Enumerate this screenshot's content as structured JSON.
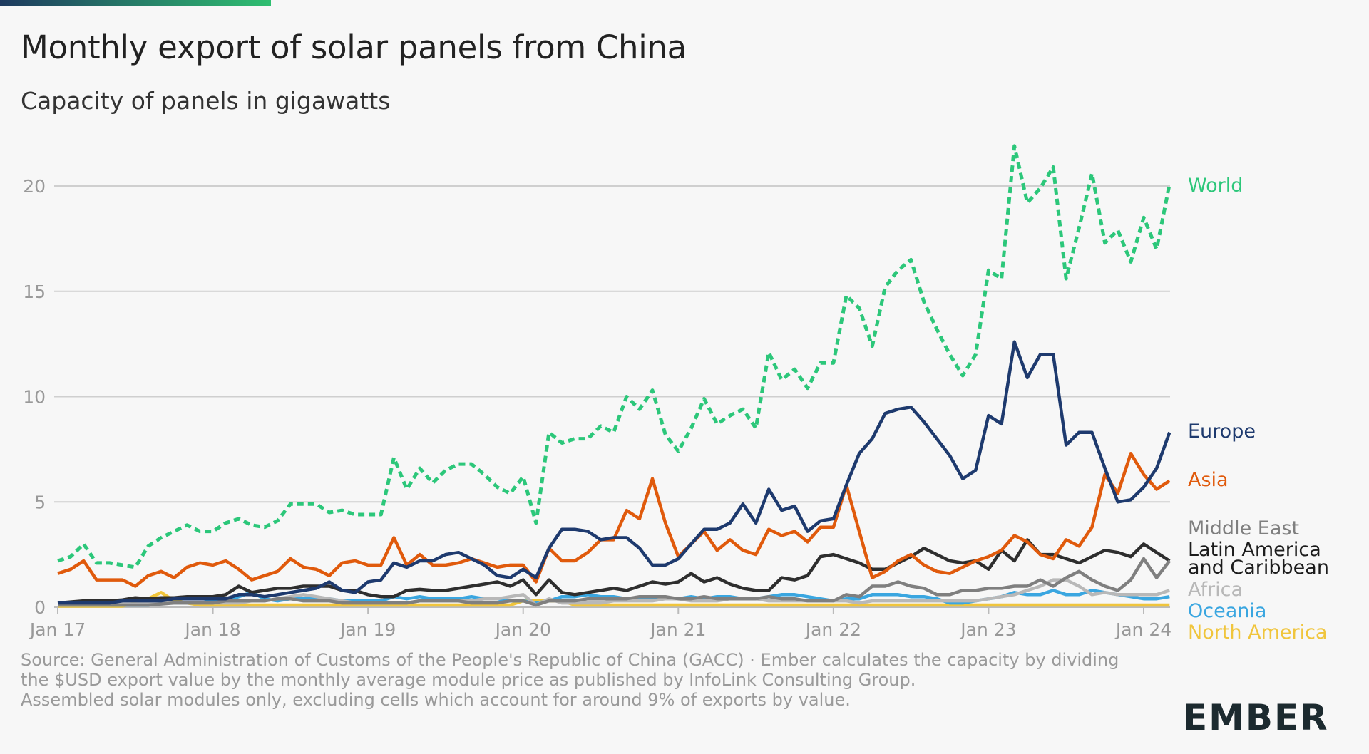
{
  "title": "Monthly export of solar panels from China",
  "subtitle": "Capacity of panels in gigawatts",
  "source_lines": [
    "Source: General Administration of Customs of the People's Republic of China (GACC) · Ember calculates the capacity by dividing the $USD export value by the monthly average module price as published by InfoLink Consulting Group.",
    "Assembled solar modules only, excluding cells which account for around 9% of exports by value."
  ],
  "logo": "EMBER",
  "chart_data": {
    "type": "line",
    "title": "Monthly export of solar panels from China",
    "ylabel": "Capacity of panels in gigawatts",
    "x_start": "Jan 2017",
    "x_end": "Mar 2024",
    "x_frequency": "monthly",
    "xticks": [
      "Jan 17",
      "Jan 18",
      "Jan 19",
      "Jan 20",
      "Jan 21",
      "Jan 22",
      "Jan 23",
      "Jan 24"
    ],
    "yticks": [
      0,
      5,
      10,
      15,
      20
    ],
    "ylim": [
      0,
      22
    ],
    "grid": true,
    "legend": "right (direct labels)",
    "series": [
      {
        "name": "World",
        "color": "#2cc77a",
        "dashed": true,
        "values": [
          2.2,
          2.4,
          3.0,
          2.1,
          2.1,
          2.0,
          1.9,
          2.9,
          3.3,
          3.6,
          3.9,
          3.6,
          3.6,
          4.0,
          4.2,
          3.9,
          3.8,
          4.1,
          4.9,
          4.9,
          4.9,
          4.5,
          4.6,
          4.4,
          4.4,
          4.4,
          7.1,
          5.6,
          6.6,
          5.9,
          6.5,
          6.8,
          6.8,
          6.3,
          5.7,
          5.4,
          6.2,
          4.0,
          8.3,
          7.8,
          8.0,
          8.0,
          8.6,
          8.3,
          10.0,
          9.4,
          10.3,
          8.2,
          7.4,
          8.5,
          9.9,
          8.7,
          9.1,
          9.4,
          8.5,
          12.1,
          10.8,
          11.3,
          10.4,
          11.6,
          11.6,
          14.8,
          14.2,
          12.4,
          15.2,
          16.0,
          16.5,
          14.5,
          13.2,
          12.0,
          11.0,
          12.0,
          16.0,
          15.6,
          21.9,
          19.2,
          19.9,
          20.9,
          15.6,
          18.0,
          20.6,
          17.3,
          17.9,
          16.4,
          18.5,
          17.0,
          20.1
        ]
      },
      {
        "name": "Europe",
        "color": "#1e3a6e",
        "values": [
          0.2,
          0.2,
          0.2,
          0.2,
          0.2,
          0.3,
          0.3,
          0.3,
          0.3,
          0.4,
          0.4,
          0.4,
          0.4,
          0.4,
          0.6,
          0.6,
          0.5,
          0.6,
          0.7,
          0.8,
          0.9,
          1.2,
          0.8,
          0.7,
          1.2,
          1.3,
          2.1,
          1.9,
          2.2,
          2.2,
          2.5,
          2.6,
          2.3,
          2.0,
          1.5,
          1.4,
          1.8,
          1.4,
          2.8,
          3.7,
          3.7,
          3.6,
          3.2,
          3.3,
          3.3,
          2.8,
          2.0,
          2.0,
          2.3,
          3.0,
          3.7,
          3.7,
          4.0,
          4.9,
          4.0,
          5.6,
          4.6,
          4.8,
          3.6,
          4.1,
          4.2,
          5.8,
          7.3,
          8.0,
          9.2,
          9.4,
          9.5,
          8.8,
          8.0,
          7.2,
          6.1,
          6.5,
          9.1,
          8.7,
          12.6,
          10.9,
          12.0,
          12.0,
          7.7,
          8.3,
          8.3,
          6.6,
          5.0,
          5.1,
          5.7,
          6.6,
          8.3
        ]
      },
      {
        "name": "Asia",
        "color": "#e05a0c",
        "values": [
          1.6,
          1.8,
          2.2,
          1.3,
          1.3,
          1.3,
          1.0,
          1.5,
          1.7,
          1.4,
          1.9,
          2.1,
          2.0,
          2.2,
          1.8,
          1.3,
          1.5,
          1.7,
          2.3,
          1.9,
          1.8,
          1.5,
          2.1,
          2.2,
          2.0,
          2.0,
          3.3,
          2.0,
          2.5,
          2.0,
          2.0,
          2.1,
          2.3,
          2.1,
          1.9,
          2.0,
          2.0,
          1.2,
          2.8,
          2.2,
          2.2,
          2.6,
          3.2,
          3.2,
          4.6,
          4.2,
          6.1,
          4.0,
          2.4,
          3.0,
          3.6,
          2.7,
          3.2,
          2.7,
          2.5,
          3.7,
          3.4,
          3.6,
          3.1,
          3.8,
          3.8,
          5.8,
          3.6,
          1.4,
          1.7,
          2.2,
          2.5,
          2.0,
          1.7,
          1.6,
          1.9,
          2.2,
          2.4,
          2.7,
          3.4,
          3.1,
          2.5,
          2.3,
          3.2,
          2.9,
          3.8,
          6.3,
          5.4,
          7.3,
          6.3,
          5.6,
          6.0
        ]
      },
      {
        "name": "Middle East",
        "color": "#7f7f7f",
        "values": [
          0.1,
          0.1,
          0.1,
          0.1,
          0.1,
          0.1,
          0.1,
          0.1,
          0.15,
          0.2,
          0.2,
          0.2,
          0.2,
          0.3,
          0.3,
          0.3,
          0.3,
          0.4,
          0.4,
          0.3,
          0.3,
          0.3,
          0.2,
          0.2,
          0.2,
          0.2,
          0.2,
          0.2,
          0.3,
          0.3,
          0.3,
          0.3,
          0.2,
          0.2,
          0.2,
          0.3,
          0.3,
          0.1,
          0.3,
          0.3,
          0.3,
          0.4,
          0.4,
          0.4,
          0.4,
          0.5,
          0.5,
          0.5,
          0.4,
          0.4,
          0.5,
          0.4,
          0.4,
          0.4,
          0.4,
          0.5,
          0.4,
          0.4,
          0.3,
          0.3,
          0.3,
          0.6,
          0.5,
          1.0,
          1.0,
          1.2,
          1.0,
          0.9,
          0.6,
          0.6,
          0.8,
          0.8,
          0.9,
          0.9,
          1.0,
          1.0,
          1.3,
          1.0,
          1.4,
          1.7,
          1.3,
          1.0,
          0.8,
          1.3,
          2.3,
          1.4,
          2.2
        ]
      },
      {
        "name": "Latin America and Caribbean",
        "color": "#2e2e2e",
        "values": [
          0.2,
          0.25,
          0.3,
          0.3,
          0.3,
          0.35,
          0.45,
          0.4,
          0.45,
          0.45,
          0.5,
          0.5,
          0.5,
          0.6,
          1.0,
          0.7,
          0.8,
          0.9,
          0.9,
          1.0,
          1.0,
          1.0,
          0.8,
          0.8,
          0.6,
          0.5,
          0.5,
          0.8,
          0.85,
          0.8,
          0.8,
          0.9,
          1.0,
          1.1,
          1.2,
          1.0,
          1.3,
          0.6,
          1.3,
          0.7,
          0.6,
          0.7,
          0.8,
          0.9,
          0.8,
          1.0,
          1.2,
          1.1,
          1.2,
          1.6,
          1.2,
          1.4,
          1.1,
          0.9,
          0.8,
          0.8,
          1.4,
          1.3,
          1.5,
          2.4,
          2.5,
          2.3,
          2.1,
          1.8,
          1.8,
          2.1,
          2.4,
          2.8,
          2.5,
          2.2,
          2.1,
          2.2,
          1.8,
          2.7,
          2.2,
          3.2,
          2.5,
          2.5,
          2.3,
          2.1,
          2.4,
          2.7,
          2.6,
          2.4,
          3.0,
          2.6,
          2.2
        ]
      },
      {
        "name": "Africa",
        "color": "#b8b8b8",
        "values": [
          0.1,
          0.1,
          0.1,
          0.1,
          0.1,
          0.15,
          0.15,
          0.2,
          0.2,
          0.2,
          0.2,
          0.2,
          0.2,
          0.2,
          0.2,
          0.3,
          0.3,
          0.4,
          0.5,
          0.6,
          0.5,
          0.4,
          0.3,
          0.2,
          0.2,
          0.2,
          0.2,
          0.2,
          0.3,
          0.3,
          0.3,
          0.3,
          0.3,
          0.4,
          0.4,
          0.5,
          0.6,
          0.1,
          0.4,
          0.2,
          0.2,
          0.2,
          0.2,
          0.3,
          0.3,
          0.3,
          0.3,
          0.4,
          0.4,
          0.3,
          0.3,
          0.3,
          0.4,
          0.4,
          0.4,
          0.3,
          0.3,
          0.3,
          0.3,
          0.3,
          0.3,
          0.3,
          0.2,
          0.3,
          0.3,
          0.3,
          0.3,
          0.3,
          0.3,
          0.3,
          0.3,
          0.3,
          0.4,
          0.5,
          0.6,
          0.8,
          1.0,
          1.3,
          1.3,
          1.0,
          0.6,
          0.7,
          0.6,
          0.6,
          0.6,
          0.6,
          0.8
        ]
      },
      {
        "name": "Oceania",
        "color": "#3aa6e0",
        "values": [
          0.1,
          0.1,
          0.1,
          0.1,
          0.1,
          0.1,
          0.1,
          0.1,
          0.2,
          0.2,
          0.2,
          0.2,
          0.3,
          0.3,
          0.5,
          0.7,
          0.4,
          0.3,
          0.4,
          0.4,
          0.4,
          0.4,
          0.3,
          0.3,
          0.3,
          0.3,
          0.5,
          0.4,
          0.5,
          0.4,
          0.4,
          0.4,
          0.5,
          0.4,
          0.4,
          0.3,
          0.3,
          0.2,
          0.3,
          0.5,
          0.5,
          0.6,
          0.5,
          0.5,
          0.4,
          0.4,
          0.4,
          0.4,
          0.4,
          0.5,
          0.4,
          0.5,
          0.5,
          0.4,
          0.4,
          0.5,
          0.6,
          0.6,
          0.5,
          0.4,
          0.3,
          0.4,
          0.4,
          0.6,
          0.6,
          0.6,
          0.5,
          0.5,
          0.4,
          0.2,
          0.2,
          0.3,
          0.4,
          0.5,
          0.7,
          0.6,
          0.6,
          0.8,
          0.6,
          0.6,
          0.8,
          0.7,
          0.6,
          0.5,
          0.4,
          0.4,
          0.5
        ]
      },
      {
        "name": "North America",
        "color": "#f0c53c",
        "values": [
          0.05,
          0.05,
          0.05,
          0.05,
          0.05,
          0.05,
          0.2,
          0.4,
          0.7,
          0.3,
          0.2,
          0.1,
          0.1,
          0.1,
          0.1,
          0.1,
          0.1,
          0.1,
          0.1,
          0.1,
          0.1,
          0.1,
          0.1,
          0.1,
          0.1,
          0.1,
          0.1,
          0.1,
          0.1,
          0.1,
          0.1,
          0.1,
          0.1,
          0.1,
          0.1,
          0.1,
          0.3,
          0.3,
          0.3,
          0.3,
          0.1,
          0.1,
          0.1,
          0.1,
          0.1,
          0.1,
          0.1,
          0.1,
          0.1,
          0.1,
          0.1,
          0.1,
          0.1,
          0.1,
          0.1,
          0.1,
          0.1,
          0.1,
          0.1,
          0.1,
          0.1,
          0.1,
          0.1,
          0.1,
          0.1,
          0.1,
          0.1,
          0.1,
          0.1,
          0.1,
          0.1,
          0.1,
          0.1,
          0.1,
          0.1,
          0.1,
          0.1,
          0.1,
          0.1,
          0.1,
          0.1,
          0.1,
          0.1,
          0.1,
          0.1,
          0.1,
          0.1
        ]
      }
    ]
  }
}
